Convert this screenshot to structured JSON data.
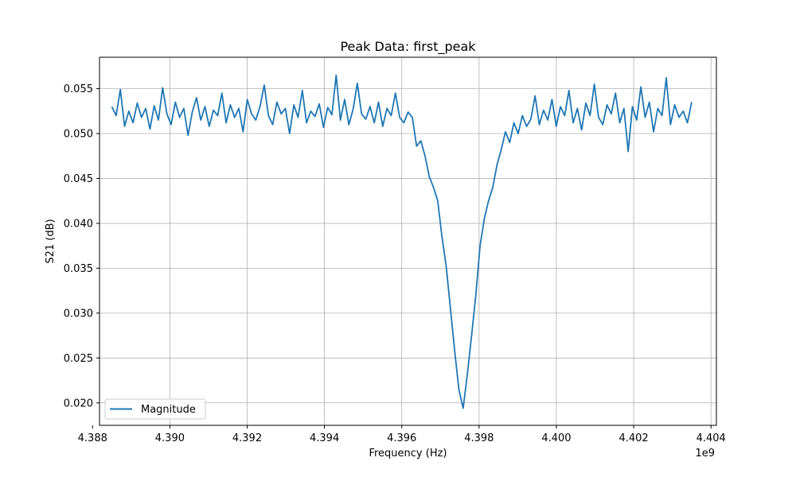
{
  "chart_data": {
    "type": "line",
    "title": "Peak Data: first_peak",
    "xlabel": "Frequency (Hz)",
    "ylabel": "S21 (dB)",
    "x_offset_label": "1e9",
    "xlim": [
      4.38818,
      4.40414
    ],
    "ylim": [
      0.0175,
      0.0585
    ],
    "x_ticks": [
      4.388,
      4.39,
      4.392,
      4.394,
      4.396,
      4.398,
      4.4,
      4.402,
      4.404
    ],
    "x_tick_labels": [
      "4.388",
      "4.390",
      "4.392",
      "4.394",
      "4.396",
      "4.398",
      "4.400",
      "4.402",
      "4.404"
    ],
    "y_ticks": [
      0.02,
      0.025,
      0.03,
      0.035,
      0.04,
      0.045,
      0.05,
      0.055
    ],
    "y_tick_labels": [
      "0.020",
      "0.025",
      "0.030",
      "0.035",
      "0.040",
      "0.045",
      "0.050",
      "0.055"
    ],
    "grid": true,
    "legend_position": "lower-left",
    "series": [
      {
        "name": "Magnitude",
        "color": "#1f77b4",
        "x_start": 4.3885,
        "x_end": 4.4035,
        "points": 600,
        "values": [
          [
            4.3885,
            0.053
          ],
          [
            4.3886,
            0.052
          ],
          [
            4.3887,
            0.0549
          ],
          [
            4.3888,
            0.0508
          ],
          [
            4.3889,
            0.0525
          ],
          [
            4.389,
            0.0512
          ],
          [
            4.3891,
            0.0534
          ],
          [
            4.3892,
            0.0518
          ],
          [
            4.3893,
            0.0528
          ],
          [
            4.3894,
            0.0505
          ],
          [
            4.3895,
            0.0531
          ],
          [
            4.3896,
            0.0515
          ],
          [
            4.3897,
            0.0551
          ],
          [
            4.3898,
            0.0522
          ],
          [
            4.3899,
            0.051
          ],
          [
            4.39,
            0.0535
          ],
          [
            4.3901,
            0.0518
          ],
          [
            4.3902,
            0.0528
          ],
          [
            4.3903,
            0.0498
          ],
          [
            4.3904,
            0.0524
          ],
          [
            4.3905,
            0.054
          ],
          [
            4.3906,
            0.0515
          ],
          [
            4.3907,
            0.053
          ],
          [
            4.3908,
            0.0508
          ],
          [
            4.3909,
            0.0526
          ],
          [
            4.391,
            0.052
          ],
          [
            4.3911,
            0.0545
          ],
          [
            4.3912,
            0.0512
          ],
          [
            4.3913,
            0.0532
          ],
          [
            4.3914,
            0.0518
          ],
          [
            4.3915,
            0.0528
          ],
          [
            4.3916,
            0.0502
          ],
          [
            4.3917,
            0.0538
          ],
          [
            4.3918,
            0.0522
          ],
          [
            4.3919,
            0.0515
          ],
          [
            4.392,
            0.053
          ],
          [
            4.3921,
            0.0554
          ],
          [
            4.3922,
            0.052
          ],
          [
            4.3923,
            0.051
          ],
          [
            4.3924,
            0.0535
          ],
          [
            4.3925,
            0.0522
          ],
          [
            4.3926,
            0.0528
          ],
          [
            4.3927,
            0.05
          ],
          [
            4.3928,
            0.0532
          ],
          [
            4.3929,
            0.0518
          ],
          [
            4.393,
            0.0548
          ],
          [
            4.3931,
            0.0512
          ],
          [
            4.3932,
            0.0525
          ],
          [
            4.3933,
            0.0519
          ],
          [
            4.3934,
            0.0533
          ],
          [
            4.3935,
            0.0507
          ],
          [
            4.3936,
            0.0529
          ],
          [
            4.3937,
            0.0521
          ],
          [
            4.3938,
            0.0565
          ],
          [
            4.3939,
            0.0515
          ],
          [
            4.394,
            0.0538
          ],
          [
            4.3941,
            0.051
          ],
          [
            4.3942,
            0.0527
          ],
          [
            4.3943,
            0.0556
          ],
          [
            4.3944,
            0.0522
          ],
          [
            4.3945,
            0.0516
          ],
          [
            4.3946,
            0.053
          ],
          [
            4.3947,
            0.0512
          ],
          [
            4.3948,
            0.0535
          ],
          [
            4.3949,
            0.0508
          ],
          [
            4.395,
            0.0528
          ],
          [
            4.3951,
            0.052
          ],
          [
            4.3952,
            0.0545
          ],
          [
            4.3953,
            0.0518
          ],
          [
            4.3954,
            0.0512
          ],
          [
            4.3955,
            0.0524
          ],
          [
            4.3956,
            0.0518
          ],
          [
            4.3957,
            0.0486
          ],
          [
            4.3958,
            0.0492
          ],
          [
            4.3959,
            0.0475
          ],
          [
            4.396,
            0.0452
          ],
          [
            4.3961,
            0.044
          ],
          [
            4.3962,
            0.0425
          ],
          [
            4.3963,
            0.0385
          ],
          [
            4.3964,
            0.0352
          ],
          [
            4.3965,
            0.0305
          ],
          [
            4.3966,
            0.0258
          ],
          [
            4.3967,
            0.0215
          ],
          [
            4.3968,
            0.0194
          ],
          [
            4.3969,
            0.0232
          ],
          [
            4.397,
            0.0275
          ],
          [
            4.3971,
            0.032
          ],
          [
            4.3972,
            0.0375
          ],
          [
            4.3973,
            0.0405
          ],
          [
            4.3974,
            0.0425
          ],
          [
            4.3975,
            0.044
          ],
          [
            4.3976,
            0.0465
          ],
          [
            4.3977,
            0.0482
          ],
          [
            4.3978,
            0.0502
          ],
          [
            4.3979,
            0.049
          ],
          [
            4.398,
            0.0512
          ],
          [
            4.3981,
            0.05
          ],
          [
            4.3982,
            0.052
          ],
          [
            4.3983,
            0.0508
          ],
          [
            4.3984,
            0.0516
          ],
          [
            4.3985,
            0.0542
          ],
          [
            4.3986,
            0.051
          ],
          [
            4.3987,
            0.0526
          ],
          [
            4.3988,
            0.0515
          ],
          [
            4.3989,
            0.0538
          ],
          [
            4.399,
            0.0508
          ],
          [
            4.3991,
            0.053
          ],
          [
            4.3992,
            0.052
          ],
          [
            4.3993,
            0.0548
          ],
          [
            4.3994,
            0.0512
          ],
          [
            4.3995,
            0.0528
          ],
          [
            4.3996,
            0.0504
          ],
          [
            4.3997,
            0.0534
          ],
          [
            4.3998,
            0.052
          ],
          [
            4.3999,
            0.0555
          ],
          [
            4.4,
            0.0518
          ],
          [
            4.4001,
            0.051
          ],
          [
            4.4002,
            0.0532
          ],
          [
            4.4003,
            0.0522
          ],
          [
            4.4004,
            0.0545
          ],
          [
            4.4005,
            0.0512
          ],
          [
            4.4006,
            0.0528
          ],
          [
            4.4007,
            0.048
          ],
          [
            4.4008,
            0.053
          ],
          [
            4.4009,
            0.0515
          ],
          [
            4.401,
            0.0552
          ],
          [
            4.4011,
            0.0518
          ],
          [
            4.4012,
            0.0535
          ],
          [
            4.4013,
            0.0502
          ],
          [
            4.4014,
            0.0528
          ],
          [
            4.4015,
            0.052
          ],
          [
            4.4016,
            0.0562
          ],
          [
            4.4017,
            0.051
          ],
          [
            4.4018,
            0.0532
          ],
          [
            4.4019,
            0.0518
          ],
          [
            4.402,
            0.0525
          ],
          [
            4.4021,
            0.0512
          ],
          [
            4.4022,
            0.0535
          ]
        ]
      }
    ]
  }
}
